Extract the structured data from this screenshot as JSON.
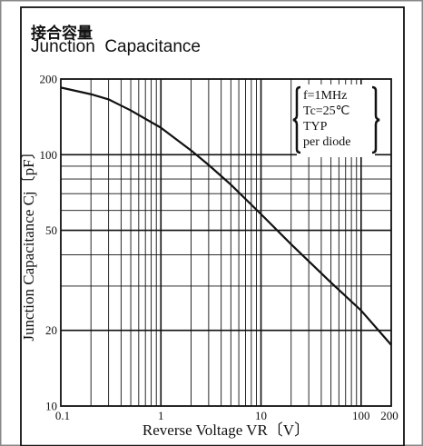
{
  "title_jp": "接合容量",
  "title_en": "Junction  Capacitance",
  "chart_data": {
    "type": "line",
    "title": "Junction Capacitance",
    "xlabel": "Reverse Voltage VR〔V〕",
    "ylabel": "Junction Capacitance Cj〔pF〕",
    "xscale": "log",
    "yscale": "log",
    "xlim": [
      0.1,
      200
    ],
    "ylim": [
      10,
      200
    ],
    "x_ticks": [
      "0.1",
      "1",
      "10",
      "100",
      "200"
    ],
    "y_ticks": [
      "200",
      "100",
      "50",
      "20",
      "10"
    ],
    "grid": true,
    "annotation": [
      "f=1MHz",
      "Tc=25℃",
      "TYP",
      "per diode"
    ],
    "series": [
      {
        "x": [
          0.1,
          0.2,
          0.3,
          0.5,
          1,
          2,
          3,
          5,
          10,
          20,
          50,
          100,
          200
        ],
        "y": [
          185,
          174,
          166,
          150,
          128,
          104,
          91,
          76,
          58,
          44,
          31,
          24,
          17.5
        ]
      }
    ],
    "line_color": "#111111"
  }
}
